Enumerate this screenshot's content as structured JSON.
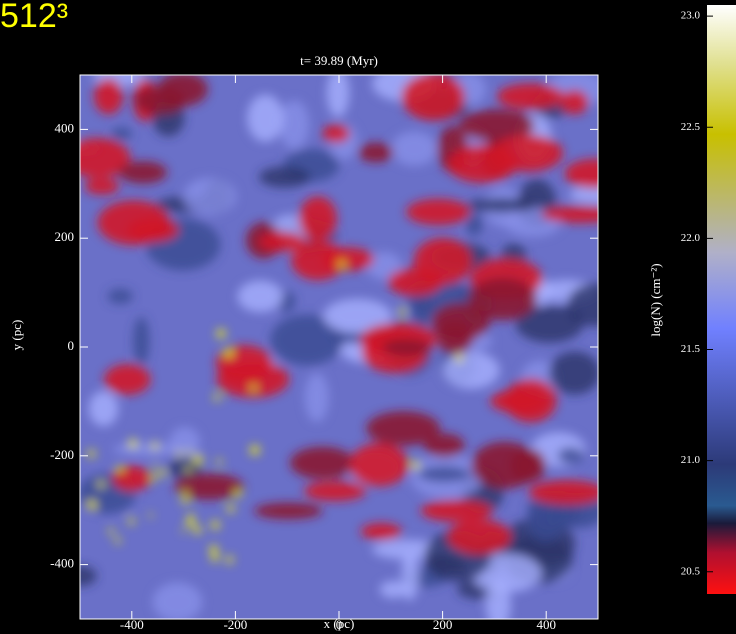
{
  "chart_data": {
    "type": "heatmap",
    "title": "512³",
    "subtitle": "t= 39.89 (Myr)",
    "x_label": "x (pc)",
    "y_label": "y (pc)",
    "xlim": [
      -500,
      500
    ],
    "xticks": [
      -400,
      -200,
      0,
      200,
      400
    ],
    "ylim": [
      -500,
      500
    ],
    "yticks": [
      -400,
      -200,
      0,
      200,
      400
    ],
    "colorbar": {
      "label": "log(N) (cm⁻²)",
      "lim": [
        20.4,
        23.05
      ],
      "ticks": [
        {
          "value": 20.5,
          "label": "20.5"
        },
        {
          "value": 21.0,
          "label": "21.0"
        },
        {
          "value": 21.5,
          "label": "21.5"
        },
        {
          "value": 22.0,
          "label": "22.0"
        },
        {
          "value": 22.5,
          "label": "22.5"
        },
        {
          "value": 23.0,
          "label": "23.0"
        }
      ]
    }
  }
}
